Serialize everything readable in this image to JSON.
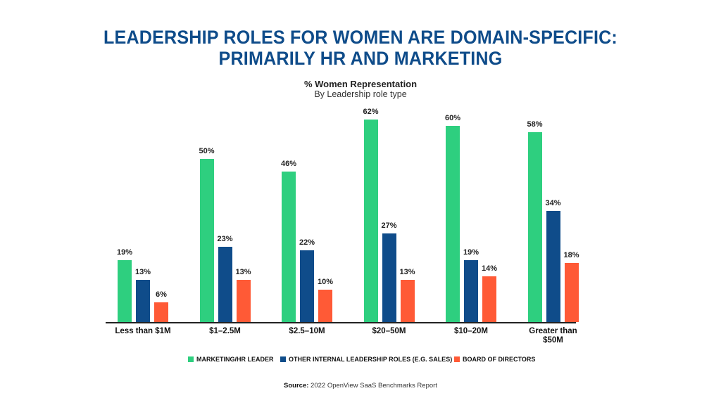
{
  "header": {
    "title_line1": "LEADERSHIP ROLES FOR WOMEN ARE DOMAIN-SPECIFIC:",
    "title_line2": "PRIMARILY HR AND MARKETING",
    "chart_title": "% Women Representation",
    "chart_subtitle": "By Leadership role type"
  },
  "legend": {
    "items": [
      {
        "label": "MARKETING/HR LEADER",
        "color": "#2ecf7f"
      },
      {
        "label": "OTHER INTERNAL LEADERSHIP ROLES (E.G. SALES)",
        "color": "#0f4c8a"
      },
      {
        "label": "BOARD OF DIRECTORS",
        "color": "#ff5a36"
      }
    ]
  },
  "source": {
    "label": "Source:",
    "text": "2022 OpenView SaaS Benchmarks Report"
  },
  "colors": {
    "title": "#0f4c8a",
    "marketing": "#2ecf7f",
    "other": "#0f4c8a",
    "board": "#ff5a36"
  },
  "chart_data": {
    "type": "bar",
    "title": "% Women Representation",
    "subtitle": "By Leadership role type",
    "xlabel": "",
    "ylabel": "",
    "ylim": [
      0,
      65
    ],
    "grid": false,
    "legend_position": "bottom",
    "categories": [
      "Less than $1M",
      "$1–2.5M",
      "$2.5–10M",
      "$20–50M",
      "$10–20M",
      "Greater than $50M"
    ],
    "series": [
      {
        "name": "MARKETING/HR LEADER",
        "color": "#2ecf7f",
        "values": [
          19,
          50,
          46,
          62,
          60,
          58
        ]
      },
      {
        "name": "OTHER INTERNAL LEADERSHIP ROLES (E.G. SALES)",
        "color": "#0f4c8a",
        "values": [
          13,
          23,
          22,
          27,
          19,
          34
        ]
      },
      {
        "name": "BOARD OF DIRECTORS",
        "color": "#ff5a36",
        "values": [
          6,
          13,
          10,
          13,
          14,
          18
        ]
      }
    ],
    "value_labels": [
      [
        "19%",
        "13%",
        "6%"
      ],
      [
        "50%",
        "23%",
        "13%"
      ],
      [
        "46%",
        "22%",
        "10%"
      ],
      [
        "62%",
        "27%",
        "13%"
      ],
      [
        "60%",
        "19%",
        "14%"
      ],
      [
        "58%",
        "34%",
        "18%"
      ]
    ]
  }
}
